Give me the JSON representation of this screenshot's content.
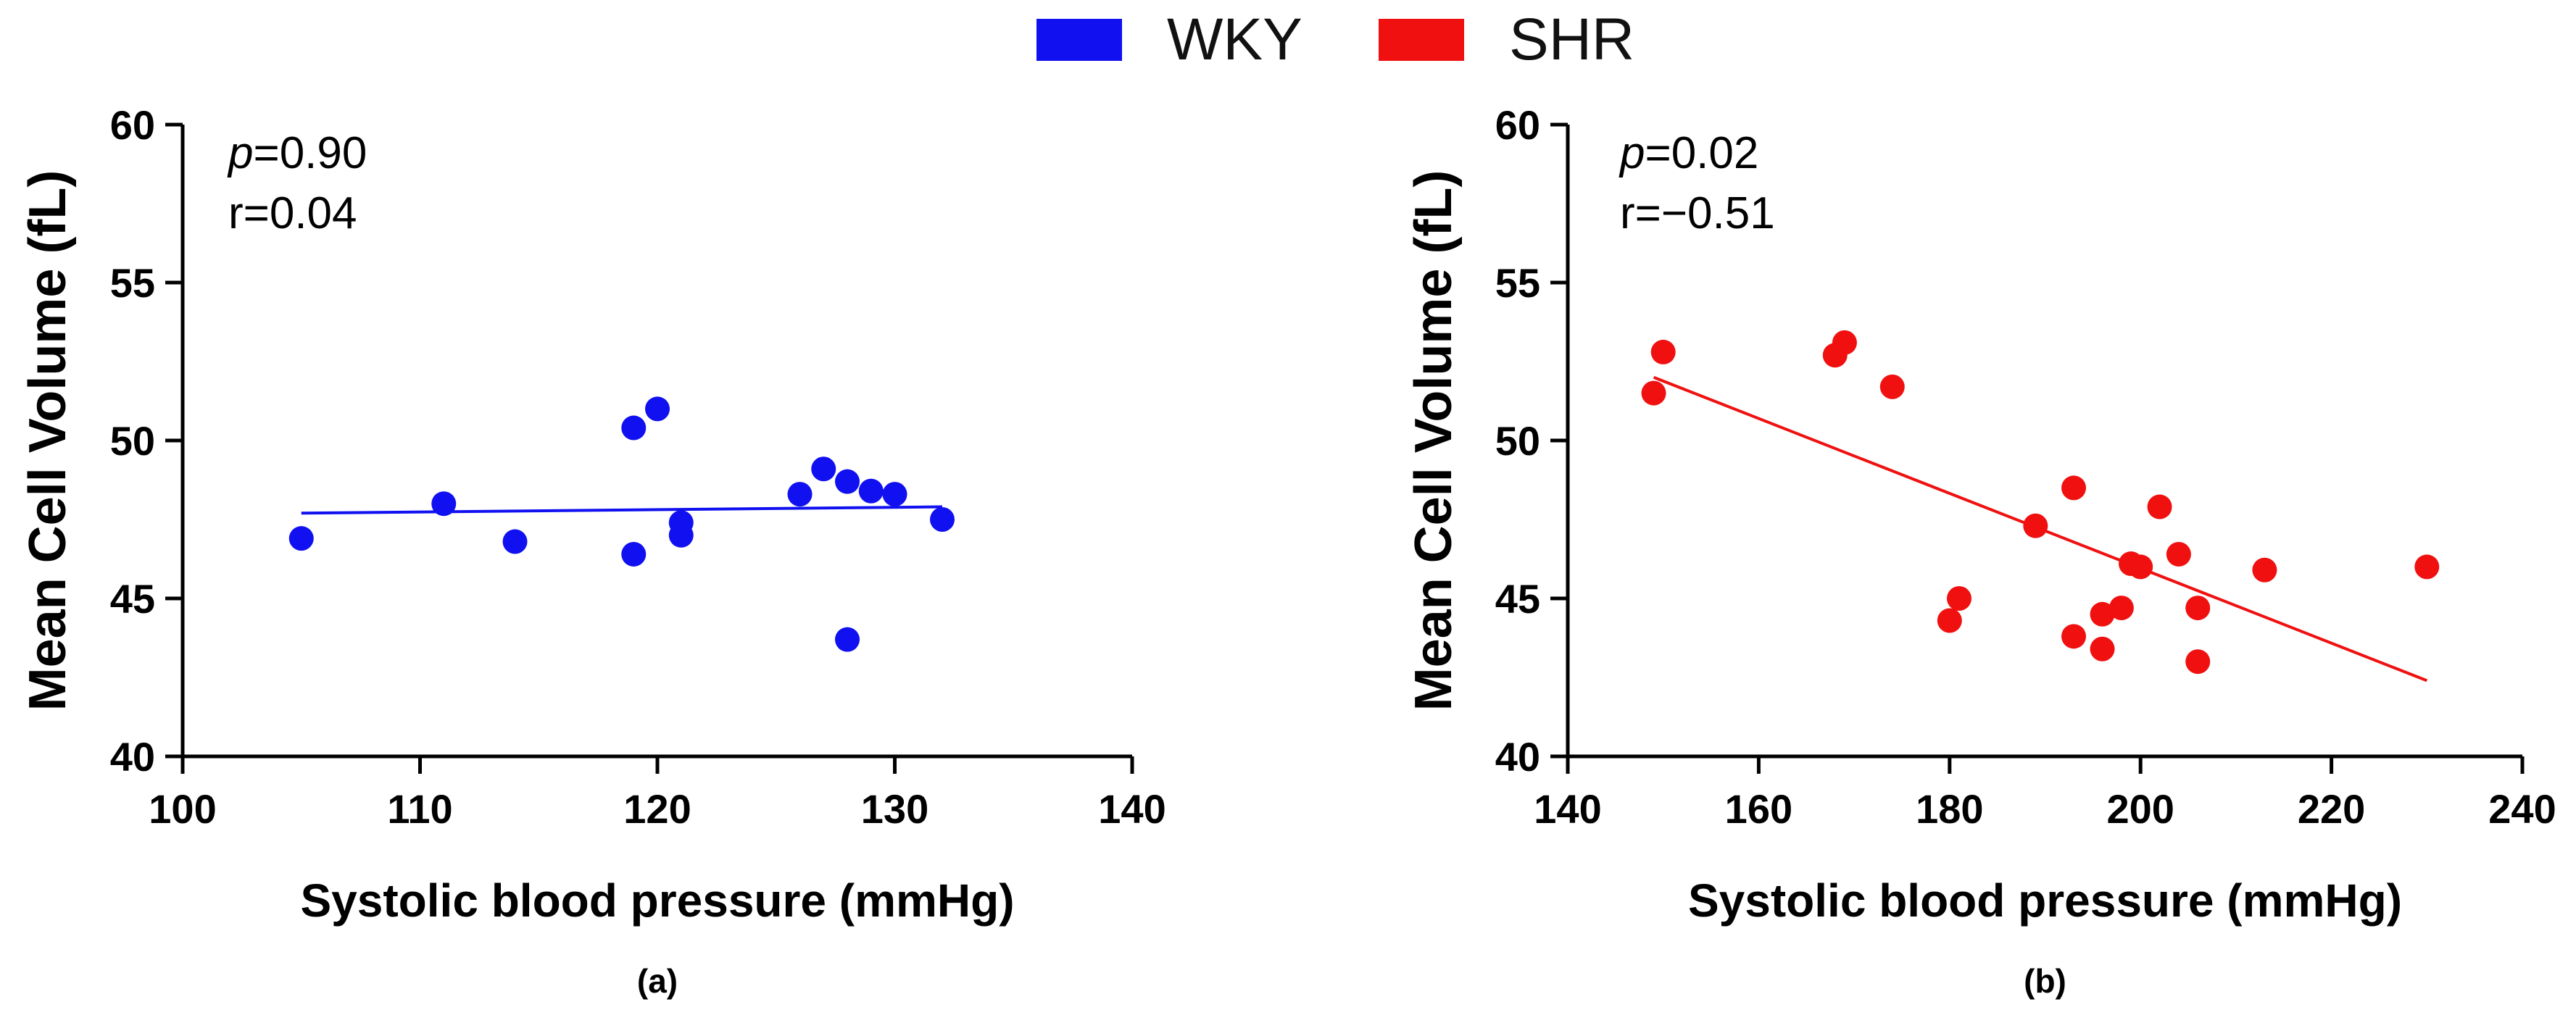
{
  "legend": [
    {
      "label": "WKY",
      "color": "#1010f0"
    },
    {
      "label": "SHR",
      "color": "#f01010"
    }
  ],
  "chart_data": [
    {
      "type": "scatter",
      "panel_label": "(a)",
      "xlabel": "Systolic blood pressure (mmHg)",
      "ylabel": "Mean Cell Volume (fL)",
      "xlim": [
        100,
        140
      ],
      "ylim": [
        40,
        60
      ],
      "xticks": [
        100,
        110,
        120,
        130,
        140
      ],
      "yticks": [
        40,
        45,
        50,
        55,
        60
      ],
      "series_name": "WKY",
      "color": "#1010f0",
      "annotation_p_label": "p",
      "annotation_p_value": "=0.90",
      "annotation_r": "r=0.04",
      "points": [
        [
          105,
          46.9
        ],
        [
          111,
          48.0
        ],
        [
          114,
          46.8
        ],
        [
          119,
          50.4
        ],
        [
          119,
          46.4
        ],
        [
          120,
          51.0
        ],
        [
          121,
          47.4
        ],
        [
          121,
          47.0
        ],
        [
          126,
          48.3
        ],
        [
          127,
          49.1
        ],
        [
          128,
          48.7
        ],
        [
          128,
          43.7
        ],
        [
          129,
          48.4
        ],
        [
          130,
          48.3
        ],
        [
          132,
          47.5
        ]
      ],
      "fit_line": [
        [
          105,
          47.7
        ],
        [
          132,
          47.9
        ]
      ]
    },
    {
      "type": "scatter",
      "panel_label": "(b)",
      "xlabel": "Systolic blood pressure (mmHg)",
      "ylabel": "Mean Cell Volume (fL)",
      "xlim": [
        140,
        240
      ],
      "ylim": [
        40,
        60
      ],
      "xticks": [
        140,
        160,
        180,
        200,
        220,
        240
      ],
      "yticks": [
        40,
        45,
        50,
        55,
        60
      ],
      "series_name": "SHR",
      "color": "#f01010",
      "annotation_p_label": "p",
      "annotation_p_value": "=0.02",
      "annotation_r": "r=−0.51",
      "points": [
        [
          149,
          51.5
        ],
        [
          150,
          52.8
        ],
        [
          168,
          52.7
        ],
        [
          169,
          53.1
        ],
        [
          174,
          51.7
        ],
        [
          180,
          44.3
        ],
        [
          181,
          45.0
        ],
        [
          189,
          47.3
        ],
        [
          193,
          48.5
        ],
        [
          193,
          43.8
        ],
        [
          196,
          44.5
        ],
        [
          196,
          43.4
        ],
        [
          198,
          44.7
        ],
        [
          199,
          46.1
        ],
        [
          200,
          46.0
        ],
        [
          202,
          47.9
        ],
        [
          204,
          46.4
        ],
        [
          206,
          44.7
        ],
        [
          206,
          43.0
        ],
        [
          213,
          45.9
        ],
        [
          230,
          46.0
        ]
      ],
      "fit_line": [
        [
          149,
          52.0
        ],
        [
          230,
          42.4
        ]
      ]
    }
  ]
}
